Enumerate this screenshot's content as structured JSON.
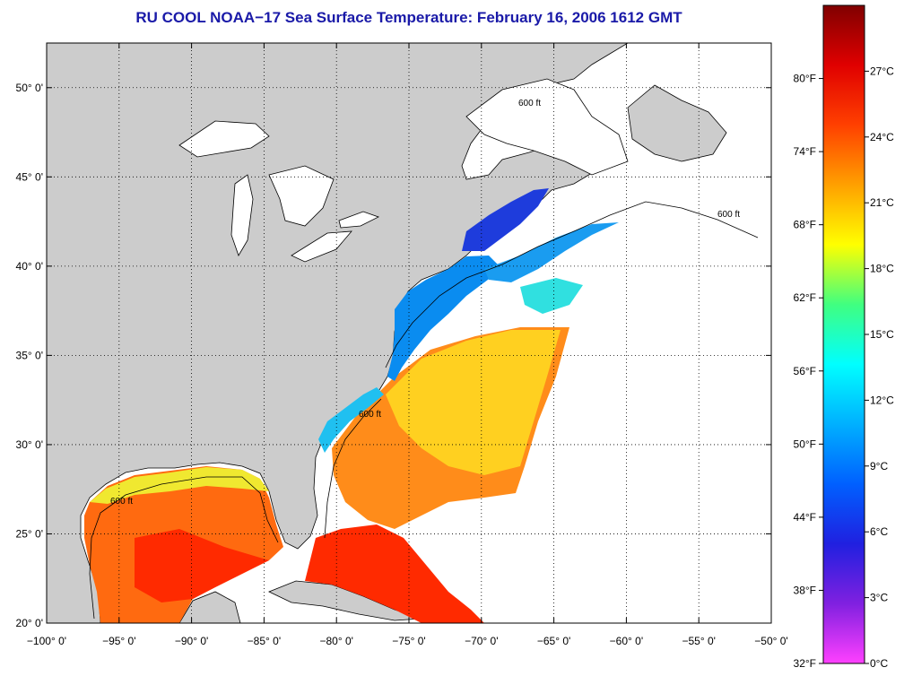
{
  "title": "RU COOL  NOAA−17  Sea Surface Temperature:  February 16, 2006 1612 GMT",
  "map": {
    "lon_range": [
      -100,
      -50
    ],
    "lat_range": [
      20,
      52.5
    ],
    "lon_ticks": [
      {
        "value": -100,
        "label": "−100° 0'"
      },
      {
        "value": -95,
        "label": "−95° 0'"
      },
      {
        "value": -90,
        "label": "−90° 0'"
      },
      {
        "value": -85,
        "label": "−85° 0'"
      },
      {
        "value": -80,
        "label": "−80° 0'"
      },
      {
        "value": -75,
        "label": "−75° 0'"
      },
      {
        "value": -70,
        "label": "−70° 0'"
      },
      {
        "value": -65,
        "label": "−65° 0'"
      },
      {
        "value": -60,
        "label": "−60° 0'"
      },
      {
        "value": -55,
        "label": "−55° 0'"
      },
      {
        "value": -50,
        "label": "−50° 0'"
      }
    ],
    "lat_ticks": [
      {
        "value": 20,
        "label": "20° 0'"
      },
      {
        "value": 25,
        "label": "25° 0'"
      },
      {
        "value": 30,
        "label": "30° 0'"
      },
      {
        "value": 35,
        "label": "35° 0'"
      },
      {
        "value": 40,
        "label": "40° 0'"
      },
      {
        "value": 45,
        "label": "45° 0'"
      },
      {
        "value": 50,
        "label": "50° 0'"
      }
    ],
    "grid": "dotted",
    "contour_label": "600 ft",
    "land_color": "#cccccc",
    "water_nodata_color": "#ffffff"
  },
  "colorbar": {
    "celsius_ticks": [
      {
        "value": 0,
        "label": "0°C"
      },
      {
        "value": 3,
        "label": "3°C"
      },
      {
        "value": 6,
        "label": "6°C"
      },
      {
        "value": 9,
        "label": "9°C"
      },
      {
        "value": 12,
        "label": "12°C"
      },
      {
        "value": 15,
        "label": "15°C"
      },
      {
        "value": 18,
        "label": "18°C"
      },
      {
        "value": 21,
        "label": "21°C"
      },
      {
        "value": 24,
        "label": "24°C"
      },
      {
        "value": 27,
        "label": "27°C"
      }
    ],
    "fahrenheit_ticks": [
      {
        "value": 32,
        "label": "32°F"
      },
      {
        "value": 38,
        "label": "38°F"
      },
      {
        "value": 44,
        "label": "44°F"
      },
      {
        "value": 50,
        "label": "50°F"
      },
      {
        "value": 56,
        "label": "56°F"
      },
      {
        "value": 62,
        "label": "62°F"
      },
      {
        "value": 68,
        "label": "68°F"
      },
      {
        "value": 74,
        "label": "74°F"
      },
      {
        "value": 80,
        "label": "80°F"
      }
    ],
    "range_c": [
      0,
      30
    ],
    "colors": [
      "#ff40ff",
      "#8020e0",
      "#2020e0",
      "#0060ff",
      "#00b0ff",
      "#00ffff",
      "#40ff80",
      "#ffff00",
      "#ffa000",
      "#ff4000",
      "#e00000",
      "#800000"
    ]
  }
}
